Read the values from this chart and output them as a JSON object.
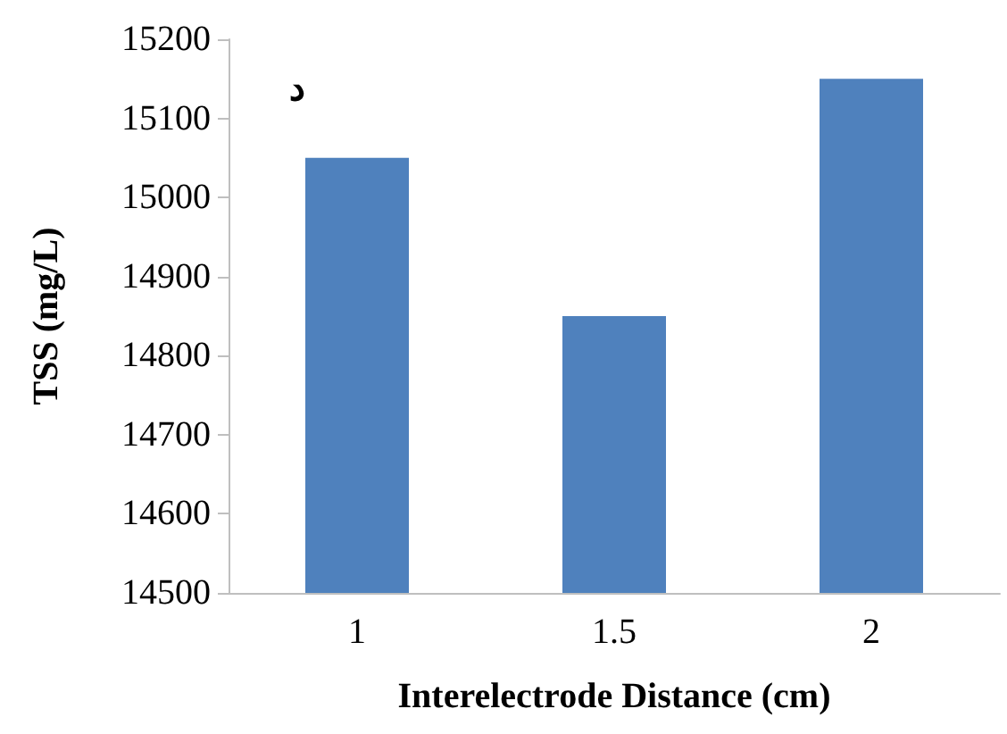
{
  "chart_data": {
    "type": "bar",
    "xlabel": "Interelectrode Distance (cm)",
    "ylabel": "TSS (mg/L)",
    "categories": [
      "1",
      "1.5",
      "2"
    ],
    "values": [
      15050,
      14850,
      15150
    ],
    "color": "#4f81bd",
    "ylim": [
      14500,
      15200
    ],
    "yticks": [
      14500,
      14600,
      14700,
      14800,
      14900,
      15000,
      15100,
      15200
    ],
    "grid": false,
    "annotations": [
      "د"
    ]
  }
}
